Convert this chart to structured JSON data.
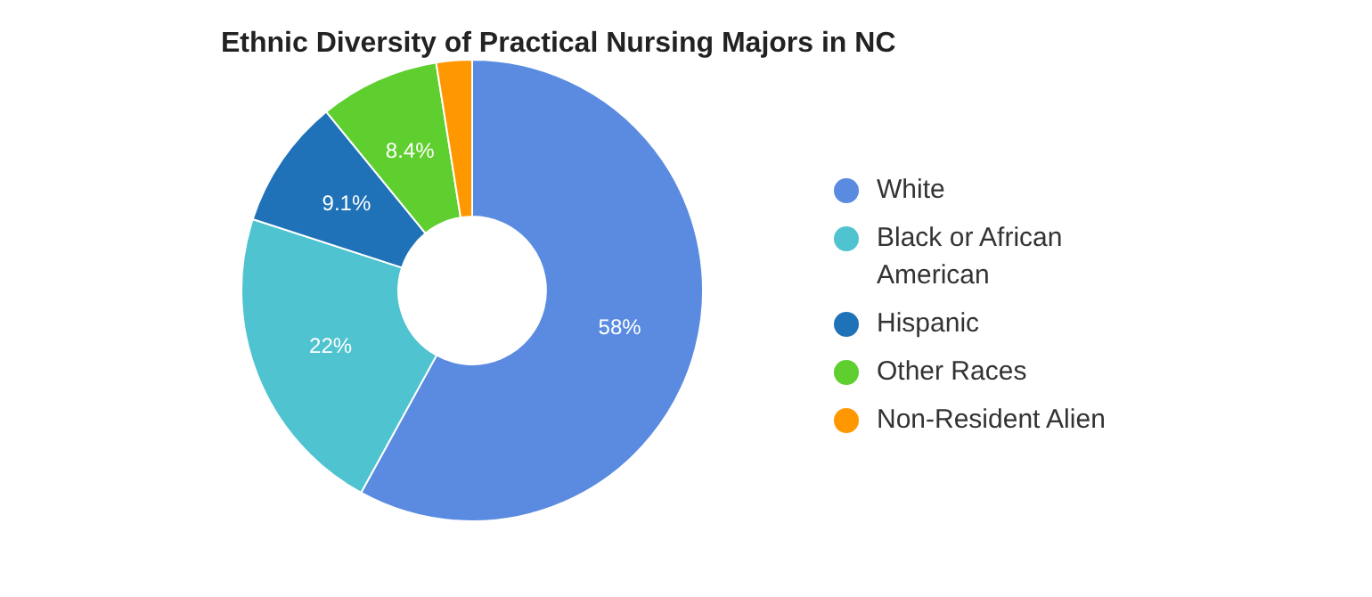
{
  "chart_data": {
    "type": "donut",
    "title": "Ethnic Diversity of Practical Nursing Majors in NC",
    "categories": [
      "White",
      "Black or African American",
      "Hispanic",
      "Other Races",
      "Non-Resident Alien"
    ],
    "values": [
      58,
      22,
      9.1,
      8.4,
      2.5
    ],
    "colors": [
      "#5a8be0",
      "#4fc3cf",
      "#1f72b8",
      "#5ecf2e",
      "#ff9800"
    ],
    "value_labels": [
      "58%",
      "22%",
      "9.1%",
      "8.4%",
      null
    ],
    "legend": "right"
  }
}
